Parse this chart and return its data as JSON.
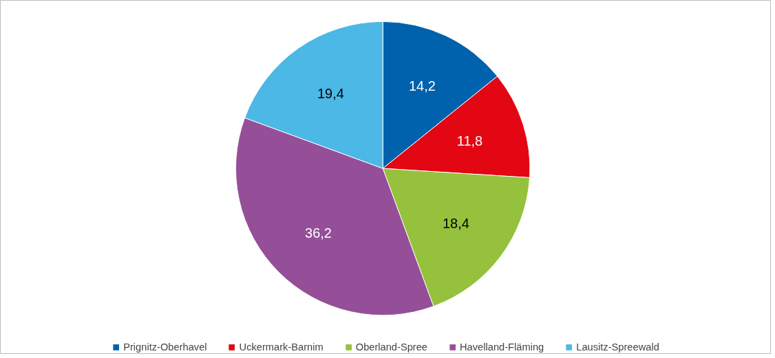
{
  "chart_data": {
    "type": "pie",
    "categories": [
      "Prignitz-Oberhavel",
      "Uckermark-Barnim",
      "Oberland-Spree",
      "Havelland-Fläming",
      "Lausitz-Spreewald"
    ],
    "values": [
      14.2,
      11.8,
      18.4,
      36.2,
      19.4
    ],
    "colors": [
      "#0061ad",
      "#e30613",
      "#95c13d",
      "#954f98",
      "#4bb8e5"
    ],
    "value_labels": [
      "14,2",
      "11,8",
      "18,4",
      "36,2",
      "19,4"
    ],
    "legend": "bottom"
  }
}
